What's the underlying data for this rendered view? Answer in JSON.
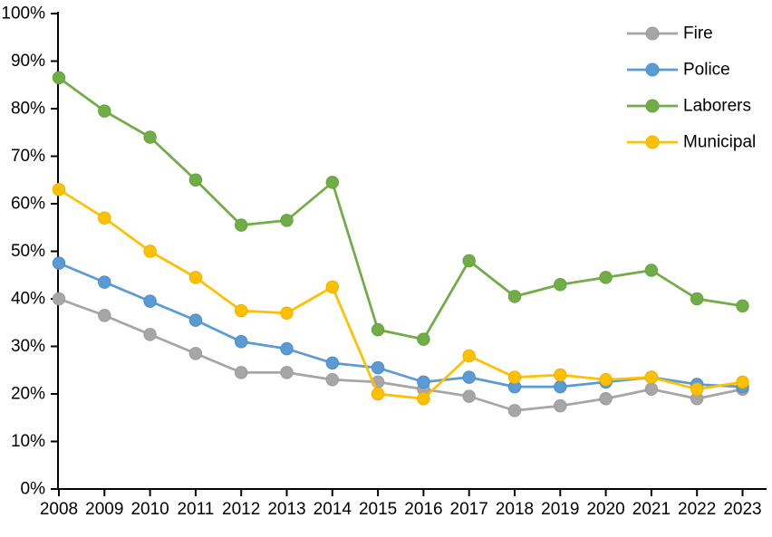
{
  "chart_data": {
    "type": "line",
    "title": "",
    "xlabel": "",
    "ylabel": "",
    "x_categories": [
      "2008",
      "2009",
      "2010",
      "2011",
      "2012",
      "2013",
      "2014",
      "2015",
      "2016",
      "2017",
      "2018",
      "2019",
      "2020",
      "2021",
      "2022",
      "2023"
    ],
    "series": [
      {
        "name": "Fire",
        "color": "#A6A6A6",
        "marker_edge": "#9B9B9B",
        "values": [
          40,
          36.5,
          32.5,
          28.5,
          24.5,
          24.5,
          23,
          22.5,
          21,
          19.5,
          16.5,
          17.5,
          19,
          21,
          19,
          21
        ]
      },
      {
        "name": "Police",
        "color": "#5B9BD5",
        "marker_edge": "#4A8BC9",
        "values": [
          47.5,
          43.5,
          39.5,
          35.5,
          31,
          29.5,
          26.5,
          25.5,
          22.5,
          23.5,
          21.5,
          21.5,
          22.5,
          23.5,
          22,
          21.5
        ]
      },
      {
        "name": "Laborers",
        "color": "#70AD47",
        "marker_edge": "#66A03F",
        "values": [
          86.5,
          79.5,
          74,
          65,
          55.5,
          56.5,
          64.5,
          33.5,
          31.5,
          48,
          40.5,
          43,
          44.5,
          46,
          40,
          38.5
        ]
      },
      {
        "name": "Municipal",
        "color": "#FFC000",
        "marker_edge": "#EDB100",
        "values": [
          63,
          57,
          50,
          44.5,
          37.5,
          37,
          42.5,
          20,
          19,
          28,
          23.5,
          24,
          23,
          23.5,
          21,
          22.5
        ]
      }
    ],
    "ylim": [
      0,
      100
    ],
    "ytick_step": 10,
    "ytick_suffix": "%",
    "ytick_labels": [
      "0%",
      "10%",
      "20%",
      "30%",
      "40%",
      "50%",
      "60%",
      "70%",
      "80%",
      "90%",
      "100%"
    ],
    "grid": false,
    "legend_position": "top-right",
    "legend_entries": [
      "Fire",
      "Police",
      "Laborers",
      "Municipal"
    ],
    "axis_color": "#000000",
    "background": "#FFFFFF"
  }
}
